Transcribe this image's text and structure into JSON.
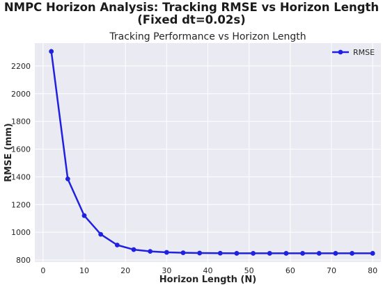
{
  "figure": {
    "suptitle_line1": "NMPC Horizon Analysis: Tracking RMSE vs Horizon Length",
    "suptitle_line2": "(Fixed dt=0.02s)"
  },
  "chart_data": {
    "type": "line",
    "title": "Tracking Performance vs Horizon Length",
    "xlabel": "Horizon Length (N)",
    "ylabel": "RMSE (mm)",
    "xlim": [
      0,
      80
    ],
    "ylim": [
      800,
      2300
    ],
    "xticks": [
      0,
      10,
      20,
      30,
      40,
      50,
      60,
      70,
      80
    ],
    "yticks": [
      800,
      1000,
      1200,
      1400,
      1600,
      1800,
      2000,
      2200
    ],
    "grid": true,
    "legend_position": "top-right",
    "background": "#eaeaf2",
    "series": [
      {
        "name": "RMSE",
        "color": "#2020e0",
        "marker": "circle",
        "x": [
          2,
          6,
          10,
          14,
          18,
          22,
          26,
          30,
          34,
          38,
          43,
          47,
          51,
          55,
          59,
          63,
          67,
          71,
          75,
          80
        ],
        "y": [
          2305,
          1385,
          1120,
          985,
          908,
          875,
          862,
          855,
          852,
          850,
          849,
          848,
          848,
          848,
          848,
          848,
          848,
          848,
          848,
          848
        ]
      }
    ]
  }
}
